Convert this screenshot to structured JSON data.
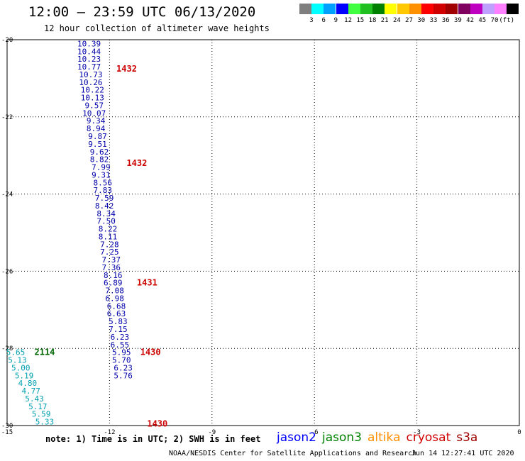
{
  "title": "12:00 – 23:59 UTC 06/13/2020",
  "subtitle": "12 hour collection of altimeter wave heights",
  "colorbar": {
    "colors": [
      "#7f7f7f",
      "#00ffff",
      "#00a0ff",
      "#0000ff",
      "#40ff40",
      "#20c020",
      "#008000",
      "#ffff00",
      "#ffc800",
      "#ff9000",
      "#ff0000",
      "#d00000",
      "#a00000",
      "#800060",
      "#c000c0",
      "#c0a0ff",
      "#ff80ff",
      "#000000"
    ],
    "labels": [
      "3",
      "6",
      "9",
      "12",
      "15",
      "18",
      "21",
      "24",
      "27",
      "30",
      "33",
      "36",
      "39",
      "42",
      "45",
      "70",
      "(ft)"
    ]
  },
  "note": "note: 1) Time is in UTC; 2) SWH is in feet",
  "satellites": [
    {
      "name": "jason2",
      "color": "#0000ff"
    },
    {
      "name": "jason3",
      "color": "#008000"
    },
    {
      "name": "altika",
      "color": "#ff9000"
    },
    {
      "name": "cryosat",
      "color": "#d00000"
    },
    {
      "name": "s3a",
      "color": "#a00000"
    }
  ],
  "credits": "NOAA/NESDIS Center for Satellite Applications and Research",
  "timestamp": "Jun 14 12:27:41 UTC 2020",
  "chart_data": {
    "type": "scatter",
    "title": "12:00 – 23:59 UTC 06/13/2020",
    "subtitle": "12 hour collection of altimeter wave heights",
    "xlim": [
      -15,
      0
    ],
    "ylim": [
      -30,
      -20
    ],
    "x_ticks": [
      "-15",
      "-12",
      "-9",
      "-6",
      "-3",
      "0"
    ],
    "y_ticks": [
      "-20",
      "-22",
      "-24",
      "-26",
      "-28",
      "-30"
    ],
    "grid": true,
    "series": [
      {
        "name": "jason2",
        "color": "#0000aa",
        "points": [
          {
            "x": -12.6,
            "y": -20.1,
            "v": "10.39"
          },
          {
            "x": -12.6,
            "y": -20.3,
            "v": "10.44"
          },
          {
            "x": -12.6,
            "y": -20.5,
            "v": "10.23"
          },
          {
            "x": -12.6,
            "y": -20.7,
            "v": "10.77"
          },
          {
            "x": -12.55,
            "y": -20.9,
            "v": "10.73"
          },
          {
            "x": -12.55,
            "y": -21.1,
            "v": "10.26"
          },
          {
            "x": -12.5,
            "y": -21.3,
            "v": "10.22"
          },
          {
            "x": -12.5,
            "y": -21.5,
            "v": "10.13"
          },
          {
            "x": -12.45,
            "y": -21.7,
            "v": "9.57"
          },
          {
            "x": -12.45,
            "y": -21.9,
            "v": "10.07"
          },
          {
            "x": -12.4,
            "y": -22.1,
            "v": "9.34"
          },
          {
            "x": -12.4,
            "y": -22.3,
            "v": "8.94"
          },
          {
            "x": -12.35,
            "y": -22.5,
            "v": "9.87"
          },
          {
            "x": -12.35,
            "y": -22.7,
            "v": "9.51"
          },
          {
            "x": -12.3,
            "y": -22.9,
            "v": "9.62"
          },
          {
            "x": -12.3,
            "y": -23.1,
            "v": "8.82"
          },
          {
            "x": -12.25,
            "y": -23.3,
            "v": "7.99"
          },
          {
            "x": -12.25,
            "y": -23.5,
            "v": "9.31"
          },
          {
            "x": -12.2,
            "y": -23.7,
            "v": "8.56"
          },
          {
            "x": -12.2,
            "y": -23.9,
            "v": "7.83"
          },
          {
            "x": -12.15,
            "y": -24.1,
            "v": "7.59"
          },
          {
            "x": -12.15,
            "y": -24.3,
            "v": "8.42"
          },
          {
            "x": -12.1,
            "y": -24.5,
            "v": "8.34"
          },
          {
            "x": -12.1,
            "y": -24.7,
            "v": "7.50"
          },
          {
            "x": -12.05,
            "y": -24.9,
            "v": "8.22"
          },
          {
            "x": -12.05,
            "y": -25.1,
            "v": "8.11"
          },
          {
            "x": -12.0,
            "y": -25.3,
            "v": "7.28"
          },
          {
            "x": -12.0,
            "y": -25.5,
            "v": "7.25"
          },
          {
            "x": -11.95,
            "y": -25.7,
            "v": "7.37"
          },
          {
            "x": -11.95,
            "y": -25.9,
            "v": "7.36"
          },
          {
            "x": -11.9,
            "y": -26.1,
            "v": "8.16"
          },
          {
            "x": -11.9,
            "y": -26.3,
            "v": "6.89"
          },
          {
            "x": -11.85,
            "y": -26.5,
            "v": "7.08"
          },
          {
            "x": -11.85,
            "y": -26.7,
            "v": "6.98"
          },
          {
            "x": -11.8,
            "y": -26.9,
            "v": "6.68"
          },
          {
            "x": -11.8,
            "y": -27.1,
            "v": "6.63"
          },
          {
            "x": -11.75,
            "y": -27.3,
            "v": "5.83"
          },
          {
            "x": -11.75,
            "y": -27.5,
            "v": "7.15"
          },
          {
            "x": -11.7,
            "y": -27.7,
            "v": "6.23"
          },
          {
            "x": -11.7,
            "y": -27.9,
            "v": "6.55"
          },
          {
            "x": -11.65,
            "y": -28.1,
            "v": "5.95"
          },
          {
            "x": -11.65,
            "y": -28.3,
            "v": "5.70"
          },
          {
            "x": -11.6,
            "y": -28.5,
            "v": "6.23"
          },
          {
            "x": -11.6,
            "y": -28.7,
            "v": "5.76"
          }
        ]
      },
      {
        "name": "jason3",
        "color": "#00a0b0",
        "points": [
          {
            "x": -14.75,
            "y": -28.1,
            "v": "5.65"
          },
          {
            "x": -14.7,
            "y": -28.3,
            "v": "5.13"
          },
          {
            "x": -14.6,
            "y": -28.5,
            "v": "5.00"
          },
          {
            "x": -14.5,
            "y": -28.7,
            "v": "5.19"
          },
          {
            "x": -14.4,
            "y": -28.9,
            "v": "4.80"
          },
          {
            "x": -14.3,
            "y": -29.1,
            "v": "4.77"
          },
          {
            "x": -14.2,
            "y": -29.3,
            "v": "5.43"
          },
          {
            "x": -14.1,
            "y": -29.5,
            "v": "5.17"
          },
          {
            "x": -14.0,
            "y": -29.7,
            "v": "5.59"
          },
          {
            "x": -13.9,
            "y": -29.9,
            "v": "5.33"
          }
        ]
      }
    ],
    "time_labels": [
      {
        "x": -11.8,
        "y": -20.75,
        "v": "1432",
        "color": "#cc0000"
      },
      {
        "x": -11.5,
        "y": -23.2,
        "v": "1432",
        "color": "#cc0000"
      },
      {
        "x": -11.2,
        "y": -26.3,
        "v": "1431",
        "color": "#cc0000"
      },
      {
        "x": -11.1,
        "y": -28.1,
        "v": "1430",
        "color": "#cc0000"
      },
      {
        "x": -10.9,
        "y": -29.95,
        "v": "1430",
        "color": "#cc0000"
      },
      {
        "x": -14.2,
        "y": -28.1,
        "v": "2114",
        "color": "#006600"
      }
    ]
  }
}
